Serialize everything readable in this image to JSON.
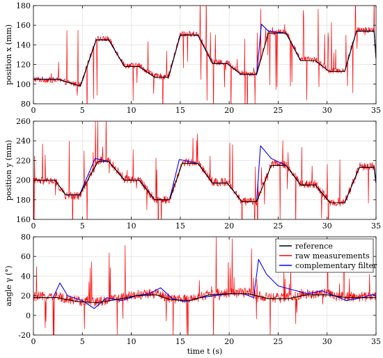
{
  "chart_data": [
    {
      "type": "line",
      "ylabel": "position x (mm)",
      "xlim": [
        0,
        35
      ],
      "ylim": [
        80,
        180
      ],
      "xticks": [
        0,
        5,
        10,
        15,
        20,
        25,
        30,
        35
      ],
      "yticks": [
        80,
        100,
        120,
        140,
        160,
        180
      ],
      "grid": true,
      "series": [
        {
          "name": "reference",
          "color": "#000000",
          "x": [
            0,
            2.5,
            4.8,
            6.4,
            7.7,
            9.3,
            10.8,
            12.4,
            13.8,
            15.0,
            16.8,
            18.3,
            19.8,
            21.2,
            22.8,
            24.0,
            25.8,
            27.3,
            28.8,
            30.2,
            31.8,
            33.0,
            34.8,
            35.0
          ],
          "y": [
            105,
            105,
            98,
            145,
            145,
            118,
            118,
            107,
            107,
            150,
            150,
            121,
            121,
            110,
            110,
            152,
            152,
            124,
            124,
            113,
            113,
            154,
            154,
            126
          ]
        },
        {
          "name": "raw measurements",
          "color": "#ff0000",
          "x": [
            0,
            2.5,
            4.8,
            6.4,
            7.7,
            9.3,
            10.8,
            12.4,
            13.8,
            15.0,
            16.8,
            18.3,
            19.8,
            21.2,
            22.8,
            24.0,
            25.8,
            27.3,
            28.8,
            30.2,
            31.8,
            33.0,
            34.8,
            35.0
          ],
          "y": [
            105,
            104,
            99,
            146,
            146,
            119,
            119,
            108,
            108,
            151,
            151,
            122,
            122,
            111,
            111,
            153,
            153,
            125,
            125,
            114,
            114,
            155,
            155,
            127
          ]
        },
        {
          "name": "complementary filter",
          "color": "#0000ff",
          "x": [
            0,
            2.5,
            4.8,
            6.4,
            7.7,
            9.3,
            10.8,
            12.4,
            13.8,
            15.0,
            16.8,
            18.3,
            19.8,
            21.2,
            22.8,
            23.3,
            24.0,
            25.8,
            27.3,
            28.8,
            30.2,
            31.8,
            33.0,
            34.8,
            35.0
          ],
          "y": [
            105,
            105,
            98,
            145,
            145,
            118,
            118,
            107,
            107,
            150,
            150,
            121,
            121,
            110,
            110,
            161,
            154,
            152,
            124,
            124,
            113,
            113,
            154,
            154,
            126
          ]
        }
      ]
    },
    {
      "type": "line",
      "ylabel": "position y (mm)",
      "xlim": [
        0,
        35
      ],
      "ylim": [
        160,
        260
      ],
      "xticks": [
        0,
        5,
        10,
        15,
        20,
        25,
        30,
        35
      ],
      "yticks": [
        160,
        180,
        200,
        220,
        240,
        260
      ],
      "grid": true,
      "series": [
        {
          "name": "reference",
          "color": "#000000",
          "x": [
            0,
            2.2,
            3.3,
            4.7,
            6.6,
            7.7,
            9.3,
            10.8,
            12.4,
            13.9,
            15.2,
            16.8,
            18.3,
            19.8,
            21.3,
            22.8,
            24.3,
            25.8,
            27.3,
            28.8,
            30.3,
            31.8,
            33.3,
            34.8,
            35.0
          ],
          "y": [
            200,
            200,
            185,
            185,
            219,
            219,
            200,
            200,
            180,
            180,
            217,
            217,
            197,
            197,
            178,
            178,
            215,
            215,
            195,
            195,
            177,
            177,
            213,
            213,
            197
          ]
        },
        {
          "name": "raw measurements",
          "color": "#ff0000",
          "x": [
            0,
            2.2,
            3.3,
            4.7,
            6.6,
            7.7,
            9.3,
            10.8,
            12.4,
            13.9,
            15.2,
            16.8,
            18.3,
            19.8,
            21.3,
            22.8,
            24.3,
            25.8,
            27.3,
            28.8,
            30.3,
            31.8,
            33.3,
            34.8,
            35.0
          ],
          "y": [
            199,
            199,
            184,
            184,
            220,
            220,
            201,
            201,
            180,
            180,
            218,
            218,
            198,
            198,
            178,
            178,
            216,
            216,
            196,
            196,
            177,
            177,
            214,
            214,
            198
          ]
        },
        {
          "name": "complementary filter",
          "color": "#0000ff",
          "x": [
            0,
            2.2,
            3.3,
            4.7,
            6.3,
            7.7,
            9.3,
            10.8,
            12.4,
            13.9,
            14.9,
            16.8,
            18.3,
            19.8,
            21.3,
            22.8,
            23.2,
            24.3,
            25.8,
            27.3,
            28.8,
            30.3,
            31.8,
            33.3,
            34.8,
            35.0
          ],
          "y": [
            200,
            200,
            185,
            185,
            222,
            219,
            200,
            200,
            180,
            180,
            221,
            217,
            197,
            197,
            178,
            178,
            235,
            222,
            215,
            195,
            195,
            177,
            177,
            213,
            213,
            197
          ]
        }
      ]
    },
    {
      "type": "line",
      "ylabel": "angle γ (°)",
      "xlabel": "time t (s)",
      "xlim": [
        0,
        35
      ],
      "ylim": [
        -20,
        80
      ],
      "xticks": [
        0,
        5,
        10,
        15,
        20,
        25,
        30,
        35
      ],
      "yticks": [
        -20,
        0,
        20,
        40,
        60,
        80
      ],
      "grid": true,
      "legend": {
        "placement": "top-right",
        "entries": [
          {
            "label": "reference",
            "color": "#000000"
          },
          {
            "label": "raw measurements",
            "color": "#ff0000"
          },
          {
            "label": "complementary filter",
            "color": "#0000ff"
          }
        ]
      },
      "series": [
        {
          "name": "reference",
          "color": "#000000",
          "x": [
            0,
            2.5,
            4.5,
            6.5,
            8.5,
            10.5,
            12.5,
            14.0,
            16.0,
            18.0,
            20.0,
            22.0,
            24.0,
            26.0,
            28.0,
            30.0,
            32.0,
            34.0,
            35.0
          ],
          "y": [
            18,
            18,
            14,
            13,
            16,
            20,
            21,
            16,
            15,
            21,
            22,
            22,
            17,
            17,
            21,
            21,
            18,
            18,
            18
          ]
        },
        {
          "name": "raw measurements",
          "color": "#ff0000",
          "x": [
            0,
            2.5,
            4.5,
            6.5,
            8.5,
            10.5,
            12.5,
            14.0,
            16.0,
            18.0,
            20.0,
            22.0,
            24.0,
            26.0,
            28.0,
            30.0,
            32.0,
            34.0,
            35.0
          ],
          "y": [
            19,
            19,
            15,
            14,
            17,
            21,
            22,
            17,
            16,
            22,
            23,
            23,
            18,
            18,
            22,
            22,
            19,
            19,
            19
          ]
        },
        {
          "name": "complementary filter",
          "color": "#0000ff",
          "x": [
            0,
            2.0,
            2.7,
            3.5,
            5.0,
            6.2,
            7.5,
            9.0,
            10.5,
            11.8,
            13.0,
            14.2,
            15.5,
            17.0,
            18.5,
            20.0,
            21.5,
            22.5,
            23.0,
            23.8,
            25.0,
            26.5,
            28.0,
            29.5,
            30.5,
            32.0,
            33.5,
            35.0
          ],
          "y": [
            18,
            18,
            33,
            20,
            15,
            7,
            18,
            15,
            20,
            22,
            28,
            17,
            14,
            18,
            20,
            22,
            22,
            18,
            57,
            42,
            30,
            26,
            22,
            25,
            21,
            15,
            18,
            22
          ]
        }
      ]
    }
  ]
}
